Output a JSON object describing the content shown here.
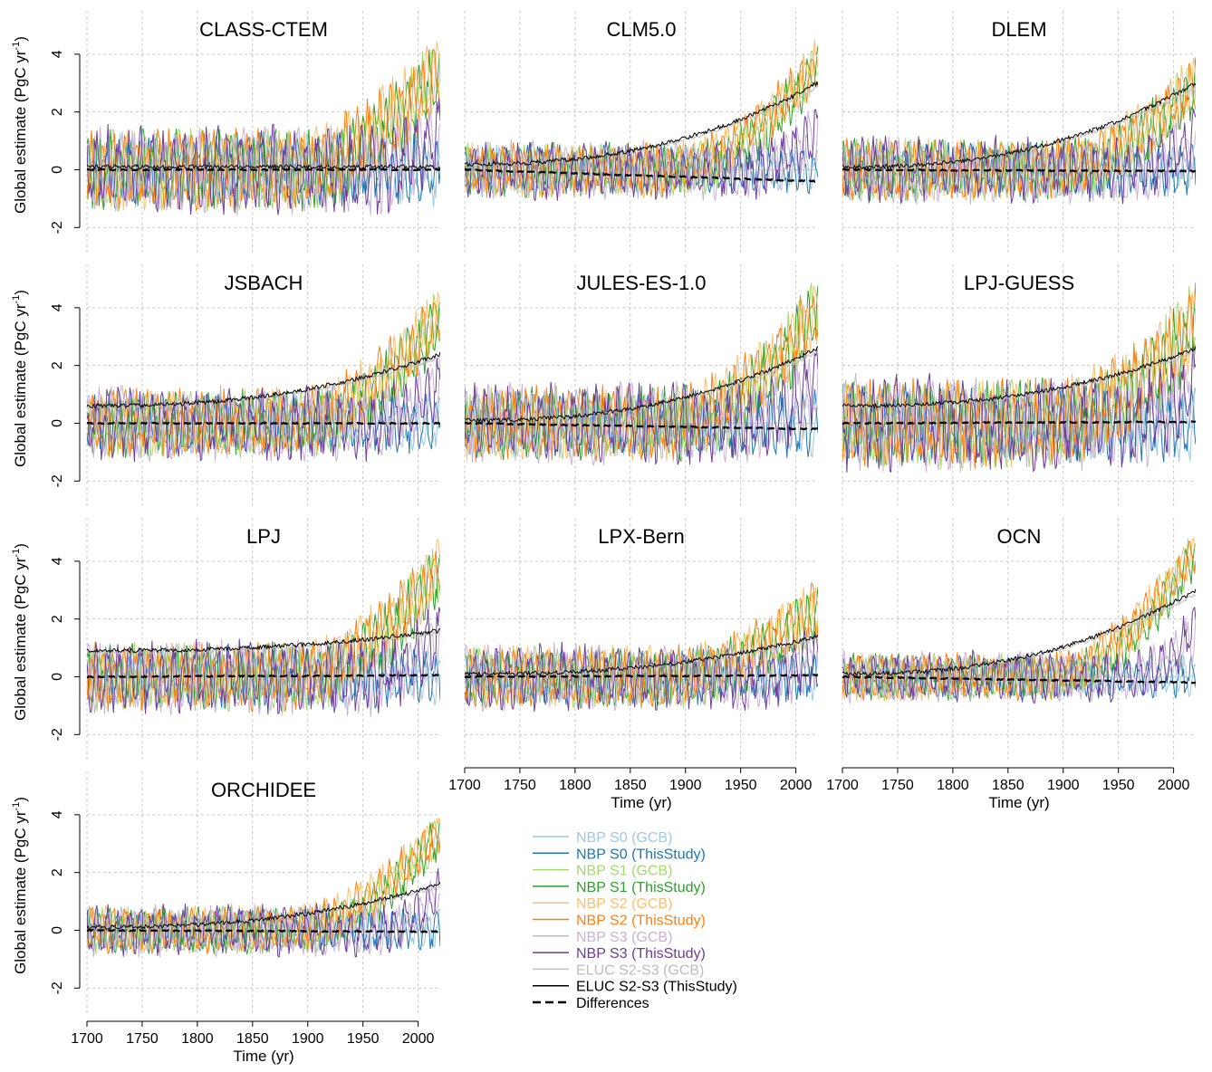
{
  "chart_data": {
    "type": "line",
    "ylabel_main": "Global estimate (PgC yr",
    "ylabel_sup": "-1",
    "ylabel_tail": ")",
    "xlabel": "Time (yr)",
    "xlim": [
      1700,
      2020
    ],
    "ylim": [
      -2.9,
      5.5
    ],
    "xticks": [
      "1700",
      "1750",
      "1800",
      "1850",
      "1900",
      "1950",
      "2000"
    ],
    "yticks": [
      "-2",
      "0",
      "2",
      "4"
    ],
    "grid": true,
    "legend_position": "bottom-center",
    "colors": {
      "s0_gcb": "#9ecae1",
      "s0_this": "#1f77b4",
      "s1_gcb": "#a6d96a",
      "s1_this": "#2ca02c",
      "s2_gcb": "#fdbf6f",
      "s2_this": "#ff7f0e",
      "s3_gcb": "#cab2d6",
      "s3_this": "#6a3d9a",
      "eluc_gcb": "#bdbdbd",
      "eluc_this": "#000000"
    },
    "legend": [
      {
        "label": "NBP S0 (GCB)",
        "color": "#9ecae1",
        "dash": false
      },
      {
        "label": "NBP S0 (ThisStudy)",
        "color": "#1f77b4",
        "dash": false
      },
      {
        "label": "NBP S1 (GCB)",
        "color": "#a6d96a",
        "dash": false
      },
      {
        "label": "NBP S1 (ThisStudy)",
        "color": "#2ca02c",
        "dash": false
      },
      {
        "label": "NBP S2 (GCB)",
        "color": "#fdbf6f",
        "dash": false
      },
      {
        "label": "NBP S2 (ThisStudy)",
        "color": "#ff7f0e",
        "dash": false
      },
      {
        "label": "NBP S3 (GCB)",
        "color": "#cab2d6",
        "dash": false
      },
      {
        "label": "NBP S3 (ThisStudy)",
        "color": "#6a3d9a",
        "dash": false
      },
      {
        "label": "ELUC S2-S3 (GCB)",
        "color": "#bdbdbd",
        "dash": false
      },
      {
        "label": "ELUC S2-S3 (ThisStudy)",
        "color": "#000000",
        "dash": false
      },
      {
        "label": "Differences",
        "color": "#000000",
        "dash": true
      }
    ],
    "panels": [
      {
        "title": "CLASS-CTEM",
        "eluc_1700": 0.1,
        "eluc_2020": 0.1,
        "nbp_amp": 1.2,
        "uptake_end": 3.5,
        "diff_level": 0.0
      },
      {
        "title": "CLM5.0",
        "eluc_1700": 0.2,
        "eluc_2020": 3.0,
        "nbp_amp": 0.8,
        "uptake_end": 3.8,
        "diff_level": -0.4
      },
      {
        "title": "DLEM",
        "eluc_1700": 0.1,
        "eluc_2020": 3.0,
        "nbp_amp": 0.9,
        "uptake_end": 3.0,
        "diff_level": -0.05
      },
      {
        "title": "JSBACH",
        "eluc_1700": 0.6,
        "eluc_2020": 2.4,
        "nbp_amp": 1.0,
        "uptake_end": 3.8,
        "diff_level": 0.0
      },
      {
        "title": "JULES-ES-1.0",
        "eluc_1700": 0.1,
        "eluc_2020": 2.6,
        "nbp_amp": 1.1,
        "uptake_end": 4.0,
        "diff_level": -0.2
      },
      {
        "title": "LPJ-GUESS",
        "eluc_1700": 0.6,
        "eluc_2020": 2.6,
        "nbp_amp": 1.3,
        "uptake_end": 3.5,
        "diff_level": 0.05
      },
      {
        "title": "LPJ",
        "eluc_1700": 0.9,
        "eluc_2020": 1.6,
        "nbp_amp": 1.0,
        "uptake_end": 3.8,
        "diff_level": 0.05
      },
      {
        "title": "LPX-Bern",
        "eluc_1700": 0.1,
        "eluc_2020": 1.4,
        "nbp_amp": 0.9,
        "uptake_end": 2.4,
        "diff_level": 0.05
      },
      {
        "title": "OCN",
        "eluc_1700": 0.1,
        "eluc_2020": 3.0,
        "nbp_amp": 0.7,
        "uptake_end": 4.5,
        "diff_level": -0.2
      },
      {
        "title": "ORCHIDEE",
        "eluc_1700": 0.1,
        "eluc_2020": 1.6,
        "nbp_amp": 0.7,
        "uptake_end": 3.5,
        "diff_level": -0.05
      }
    ]
  }
}
